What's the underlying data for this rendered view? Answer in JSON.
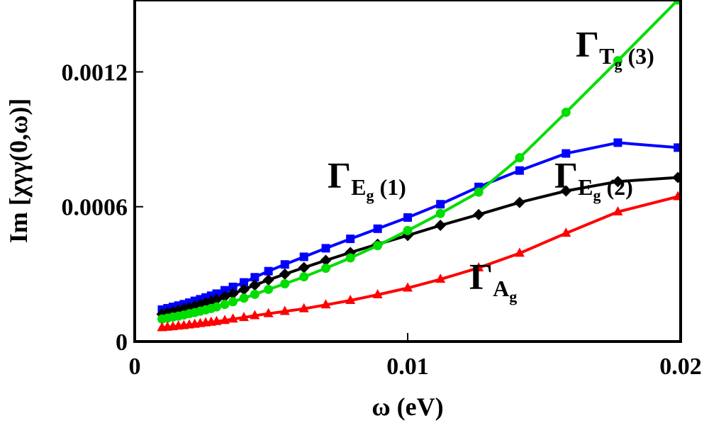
{
  "chart_data": {
    "type": "line",
    "title": "",
    "xlabel": "ω (eV)",
    "ylabel": "Im [χγγ(0,ω)]",
    "xlim": [
      0,
      0.02
    ],
    "ylim": [
      0,
      0.00152
    ],
    "x_ticks": [
      {
        "value": 0,
        "label": "0"
      },
      {
        "value": 0.01,
        "label": "0.01"
      },
      {
        "value": 0.02,
        "label": "0.02"
      }
    ],
    "y_ticks": [
      {
        "value": 0,
        "label": "0"
      },
      {
        "value": 0.0006,
        "label": "0.0006"
      },
      {
        "value": 0.0012,
        "label": "0.0012"
      }
    ],
    "grid": false,
    "legend": "none",
    "series": [
      {
        "name": "ΓEg(1)",
        "color": "#0000ff",
        "marker": "square",
        "x": [
          0.001,
          0.0012,
          0.0014,
          0.0016,
          0.0018,
          0.002,
          0.0022,
          0.0024,
          0.0026,
          0.0028,
          0.003,
          0.0033,
          0.0036,
          0.004,
          0.0044,
          0.0049,
          0.0055,
          0.0062,
          0.007,
          0.0079,
          0.0089,
          0.01,
          0.0112,
          0.0126,
          0.0141,
          0.0158,
          0.0177,
          0.0199
        ],
        "y": [
          0.000142,
          0.000148,
          0.000154,
          0.00016,
          0.000166,
          0.000173,
          0.000181,
          0.000188,
          0.000196,
          0.000204,
          0.000213,
          0.000228,
          0.000243,
          0.000263,
          0.000286,
          0.000313,
          0.000343,
          0.000377,
          0.000415,
          0.000457,
          0.000502,
          0.000552,
          0.000611,
          0.000688,
          0.000761,
          0.000837,
          0.000885,
          0.000863
        ]
      },
      {
        "name": "ΓEg(2)",
        "color": "#000000",
        "marker": "diamond",
        "x": [
          0.001,
          0.0012,
          0.0014,
          0.0016,
          0.0018,
          0.002,
          0.0022,
          0.0024,
          0.0026,
          0.0028,
          0.003,
          0.0033,
          0.0036,
          0.004,
          0.0044,
          0.0049,
          0.0055,
          0.0062,
          0.007,
          0.0079,
          0.0089,
          0.01,
          0.0112,
          0.0126,
          0.0141,
          0.0158,
          0.0177,
          0.0199
        ],
        "y": [
          0.000122,
          0.000128,
          0.000133,
          0.000139,
          0.000145,
          0.000151,
          0.000158,
          0.000165,
          0.000172,
          0.000179,
          0.000187,
          0.0002,
          0.000213,
          0.000231,
          0.000251,
          0.000274,
          0.0003,
          0.000329,
          0.000361,
          0.000396,
          0.000433,
          0.000472,
          0.000517,
          0.000565,
          0.000619,
          0.00067,
          0.000712,
          0.00073
        ]
      },
      {
        "name": "ΓTg(3)",
        "color": "#00dd00",
        "marker": "circle",
        "x": [
          0.001,
          0.0012,
          0.0014,
          0.0016,
          0.0018,
          0.002,
          0.0022,
          0.0024,
          0.0026,
          0.0028,
          0.003,
          0.0033,
          0.0036,
          0.004,
          0.0044,
          0.0049,
          0.0055,
          0.0062,
          0.007,
          0.0079,
          0.0089,
          0.01,
          0.0112,
          0.0126,
          0.0141,
          0.0158,
          0.0177,
          0.0199
        ],
        "y": [
          0.0001,
          0.000104,
          0.000109,
          0.000113,
          0.000118,
          0.000124,
          0.000129,
          0.000135,
          0.000141,
          0.000147,
          0.000154,
          0.000165,
          0.000177,
          0.000193,
          0.00021,
          0.000232,
          0.000257,
          0.000288,
          0.000326,
          0.000372,
          0.000427,
          0.000494,
          0.00057,
          0.000665,
          0.000818,
          0.00102,
          0.00125,
          0.00152
        ]
      },
      {
        "name": "ΓAg",
        "color": "#ff0000",
        "marker": "triangle",
        "x": [
          0.001,
          0.0012,
          0.0014,
          0.0016,
          0.0018,
          0.002,
          0.0022,
          0.0024,
          0.0026,
          0.0028,
          0.003,
          0.0033,
          0.0036,
          0.004,
          0.0044,
          0.0049,
          0.0055,
          0.0062,
          0.007,
          0.0079,
          0.0089,
          0.01,
          0.0112,
          0.0126,
          0.0141,
          0.0158,
          0.0177,
          0.0199
        ],
        "y": [
          6.2e-05,
          6.4e-05,
          6.6e-05,
          6.9e-05,
          7.1e-05,
          7.4e-05,
          7.7e-05,
          8e-05,
          8.3e-05,
          8.6e-05,
          8.9e-05,
          9.4e-05,
          0.0001,
          0.000107,
          0.000115,
          0.000124,
          0.000134,
          0.000146,
          0.000163,
          0.000183,
          0.000208,
          0.000238,
          0.000277,
          0.000328,
          0.000393,
          0.000482,
          0.000577,
          0.000645
        ]
      }
    ],
    "annotations": [
      {
        "series": 2,
        "main": "Γ",
        "sub": "T",
        "subsub": "g",
        "suffix": "(3)"
      },
      {
        "series": 0,
        "main": "Γ",
        "sub": "E",
        "subsub": "g",
        "suffix": "(1)"
      },
      {
        "series": 1,
        "main": "Γ",
        "sub": "E",
        "subsub": "g",
        "suffix": "(2)"
      },
      {
        "series": 3,
        "main": "Γ",
        "sub": "A",
        "subsub": "g",
        "suffix": ""
      }
    ]
  }
}
